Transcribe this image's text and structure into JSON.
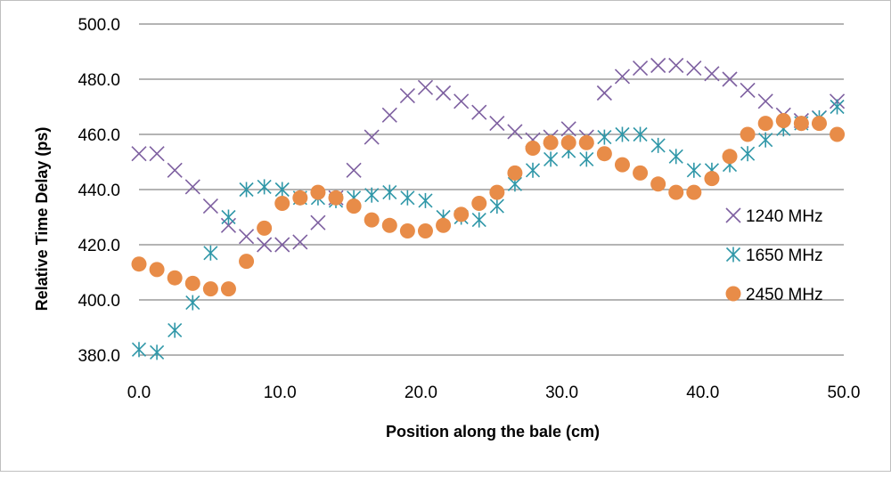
{
  "chart_data": {
    "type": "scatter",
    "xlabel": "Position along the bale (cm)",
    "ylabel": "Relative Time Delay (ps)",
    "xlim": [
      0,
      50
    ],
    "ylim": [
      380,
      500
    ],
    "x_ticks": [
      "0.0",
      "10.0",
      "20.0",
      "30.0",
      "40.0",
      "50.0"
    ],
    "y_ticks": [
      "380.0",
      "400.0",
      "420.0",
      "440.0",
      "460.0",
      "480.0",
      "500.0"
    ],
    "grid": "horizontal",
    "legend_position": "right",
    "series": [
      {
        "name": "1240 MHz",
        "marker": "x",
        "color": "#7D5FA0",
        "x": [
          0,
          1.27,
          2.54,
          3.81,
          5.08,
          6.35,
          7.62,
          8.89,
          10.16,
          11.43,
          12.7,
          13.97,
          15.24,
          16.51,
          17.78,
          19.05,
          20.32,
          21.59,
          22.86,
          24.13,
          25.4,
          26.67,
          27.94,
          29.21,
          30.48,
          31.75,
          33.02,
          34.29,
          35.56,
          36.83,
          38.1,
          39.37,
          40.64,
          41.91,
          43.18,
          44.45,
          45.72,
          46.99,
          48.26,
          49.53
        ],
        "y": [
          453,
          453,
          447,
          441,
          434,
          427,
          423,
          420,
          420,
          421,
          428,
          437,
          447,
          459,
          467,
          474,
          477,
          475,
          472,
          468,
          464,
          461,
          458,
          459,
          462,
          459,
          475,
          481,
          484,
          485,
          485,
          484,
          482,
          480,
          476,
          472,
          467,
          465,
          466,
          472
        ]
      },
      {
        "name": "1650 MHz",
        "marker": "asterisk",
        "color": "#2F97A8",
        "x": [
          0,
          1.27,
          2.54,
          3.81,
          5.08,
          6.35,
          7.62,
          8.89,
          10.16,
          11.43,
          12.7,
          13.97,
          15.24,
          16.51,
          17.78,
          19.05,
          20.32,
          21.59,
          22.86,
          24.13,
          25.4,
          26.67,
          27.94,
          29.21,
          30.48,
          31.75,
          33.02,
          34.29,
          35.56,
          36.83,
          38.1,
          39.37,
          40.64,
          41.91,
          43.18,
          44.45,
          45.72,
          46.99,
          48.26,
          49.53
        ],
        "y": [
          382,
          381,
          389,
          399,
          417,
          430,
          440,
          441,
          440,
          437,
          437,
          436,
          437,
          438,
          439,
          437,
          436,
          430,
          430,
          429,
          434,
          442,
          447,
          451,
          454,
          451,
          459,
          460,
          460,
          456,
          452,
          447,
          447,
          449,
          453,
          458,
          462,
          464,
          466,
          470
        ]
      },
      {
        "name": "2450 MHz",
        "marker": "circle",
        "color": "#E88C48",
        "x": [
          0,
          1.27,
          2.54,
          3.81,
          5.08,
          6.35,
          7.62,
          8.89,
          10.16,
          11.43,
          12.7,
          13.97,
          15.24,
          16.51,
          17.78,
          19.05,
          20.32,
          21.59,
          22.86,
          24.13,
          25.4,
          26.67,
          27.94,
          29.21,
          30.48,
          31.75,
          33.02,
          34.29,
          35.56,
          36.83,
          38.1,
          39.37,
          40.64,
          41.91,
          43.18,
          44.45,
          45.72,
          46.99,
          48.26,
          49.53
        ],
        "y": [
          413,
          411,
          408,
          406,
          404,
          404,
          414,
          426,
          435,
          437,
          439,
          437,
          434,
          429,
          427,
          425,
          425,
          427,
          431,
          435,
          439,
          446,
          455,
          457,
          457,
          457,
          453,
          449,
          446,
          442,
          439,
          439,
          444,
          452,
          460,
          464,
          465,
          464,
          464,
          460
        ]
      }
    ]
  }
}
